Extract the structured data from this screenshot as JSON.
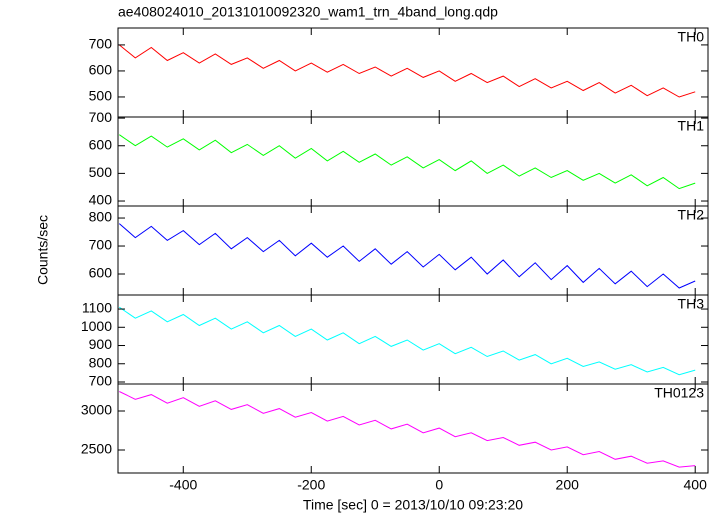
{
  "title": "ae408024010_20131010092320_wam1_trn_4band_long.qdp",
  "xlabel": "Time [sec] 0 = 2013/10/10 09:23:20",
  "ylabel": "Counts/sec",
  "chart_data": [
    {
      "type": "line",
      "xlim": [
        -502,
        420
      ],
      "xticks": [
        -400,
        -200,
        0,
        200,
        400
      ],
      "ylim": [
        423,
        765
      ],
      "yticks": [
        500,
        600,
        700
      ],
      "x": [
        -500,
        -475,
        -450,
        -425,
        -400,
        -375,
        -350,
        -325,
        -300,
        -275,
        -250,
        -225,
        -200,
        -175,
        -150,
        -125,
        -100,
        -75,
        -50,
        -25,
        0,
        25,
        50,
        75,
        100,
        125,
        150,
        175,
        200,
        225,
        250,
        275,
        300,
        325,
        350,
        375,
        400
      ],
      "series": [
        {
          "name": "TH0",
          "color": "#ff0000",
          "values": [
            700,
            650,
            690,
            640,
            670,
            630,
            665,
            625,
            650,
            610,
            640,
            600,
            630,
            595,
            625,
            590,
            615,
            580,
            610,
            575,
            600,
            560,
            590,
            555,
            580,
            540,
            570,
            535,
            560,
            525,
            555,
            515,
            545,
            505,
            535,
            500,
            520
          ]
        }
      ]
    },
    {
      "type": "line",
      "xlim": [
        -502,
        420
      ],
      "xticks": [
        -400,
        -200,
        0,
        200,
        400
      ],
      "ylim": [
        382,
        704
      ],
      "yticks": [
        400,
        500,
        600,
        700
      ],
      "x": [
        -500,
        -475,
        -450,
        -425,
        -400,
        -375,
        -350,
        -325,
        -300,
        -275,
        -250,
        -225,
        -200,
        -175,
        -150,
        -125,
        -100,
        -75,
        -50,
        -25,
        0,
        25,
        50,
        75,
        100,
        125,
        150,
        175,
        200,
        225,
        250,
        275,
        300,
        325,
        350,
        375,
        400
      ],
      "series": [
        {
          "name": "TH1",
          "color": "#00ff00",
          "values": [
            640,
            600,
            635,
            595,
            625,
            585,
            620,
            575,
            605,
            565,
            600,
            555,
            590,
            545,
            580,
            540,
            570,
            530,
            560,
            520,
            550,
            510,
            545,
            500,
            530,
            490,
            520,
            485,
            510,
            475,
            500,
            465,
            495,
            455,
            485,
            445,
            465
          ]
        }
      ]
    },
    {
      "type": "line",
      "xlim": [
        -502,
        420
      ],
      "xticks": [
        -400,
        -200,
        0,
        200,
        400
      ],
      "ylim": [
        525,
        843
      ],
      "yticks": [
        600,
        700,
        800
      ],
      "x": [
        -500,
        -475,
        -450,
        -425,
        -400,
        -375,
        -350,
        -325,
        -300,
        -275,
        -250,
        -225,
        -200,
        -175,
        -150,
        -125,
        -100,
        -75,
        -50,
        -25,
        0,
        25,
        50,
        75,
        100,
        125,
        150,
        175,
        200,
        225,
        250,
        275,
        300,
        325,
        350,
        375,
        400
      ],
      "series": [
        {
          "name": "TH2",
          "color": "#0000ff",
          "values": [
            780,
            730,
            770,
            720,
            755,
            705,
            745,
            690,
            730,
            680,
            720,
            665,
            710,
            660,
            700,
            645,
            690,
            635,
            680,
            625,
            670,
            615,
            660,
            600,
            650,
            590,
            640,
            580,
            630,
            570,
            620,
            565,
            610,
            555,
            600,
            550,
            575
          ]
        }
      ]
    },
    {
      "type": "line",
      "xlim": [
        -502,
        420
      ],
      "xticks": [
        -400,
        -200,
        0,
        200,
        400
      ],
      "ylim": [
        689,
        1177
      ],
      "yticks": [
        700,
        800,
        900,
        1000,
        1100
      ],
      "x": [
        -500,
        -475,
        -450,
        -425,
        -400,
        -375,
        -350,
        -325,
        -300,
        -275,
        -250,
        -225,
        -200,
        -175,
        -150,
        -125,
        -100,
        -75,
        -50,
        -25,
        0,
        25,
        50,
        75,
        100,
        125,
        150,
        175,
        200,
        225,
        250,
        275,
        300,
        325,
        350,
        375,
        400
      ],
      "series": [
        {
          "name": "TH3",
          "color": "#00ffff",
          "values": [
            1110,
            1050,
            1090,
            1030,
            1070,
            1010,
            1050,
            990,
            1030,
            970,
            1010,
            950,
            990,
            930,
            970,
            910,
            950,
            895,
            930,
            875,
            910,
            855,
            890,
            840,
            870,
            820,
            850,
            800,
            830,
            785,
            810,
            770,
            795,
            755,
            780,
            740,
            765
          ]
        }
      ]
    },
    {
      "type": "line",
      "xlim": [
        -502,
        420
      ],
      "xticks": [
        -400,
        -200,
        0,
        200,
        400
      ],
      "ylim": [
        2205,
        3346
      ],
      "yticks": [
        2500,
        3000
      ],
      "x": [
        -500,
        -475,
        -450,
        -425,
        -400,
        -375,
        -350,
        -325,
        -300,
        -275,
        -250,
        -225,
        -200,
        -175,
        -150,
        -125,
        -100,
        -75,
        -50,
        -25,
        0,
        25,
        50,
        75,
        100,
        125,
        150,
        175,
        200,
        225,
        250,
        275,
        300,
        325,
        350,
        375,
        400
      ],
      "series": [
        {
          "name": "TH0123",
          "color": "#ff00ff",
          "values": [
            3250,
            3150,
            3210,
            3100,
            3170,
            3060,
            3130,
            3020,
            3080,
            2970,
            3030,
            2920,
            2980,
            2870,
            2930,
            2820,
            2880,
            2770,
            2830,
            2720,
            2780,
            2670,
            2720,
            2620,
            2660,
            2560,
            2600,
            2500,
            2540,
            2440,
            2480,
            2380,
            2420,
            2330,
            2360,
            2280,
            2300
          ]
        }
      ]
    }
  ]
}
